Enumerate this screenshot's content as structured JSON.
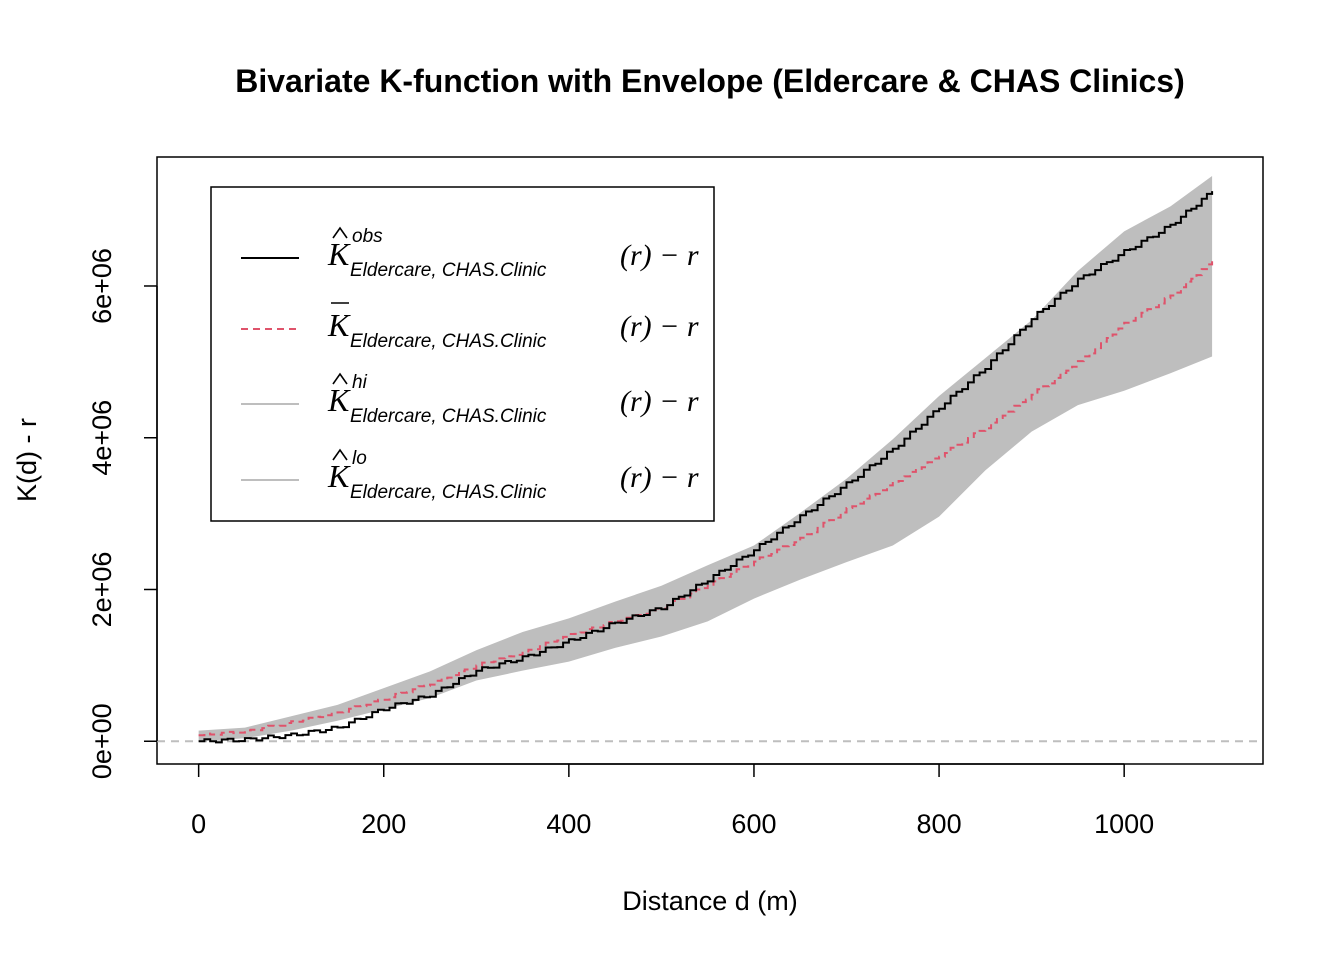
{
  "chart_data": {
    "type": "line",
    "title": "Bivariate K-function with Envelope (Eldercare & CHAS Clinics)",
    "xlabel": "Distance d (m)",
    "ylabel": "K(d) - r",
    "xlim": [
      -45,
      1150
    ],
    "ylim": [
      -300000,
      7700000
    ],
    "x_ticks": [
      0,
      200,
      400,
      600,
      800,
      1000
    ],
    "x_tick_labels": [
      "0",
      "200",
      "400",
      "600",
      "800",
      "1000"
    ],
    "y_ticks": [
      0,
      2000000,
      4000000,
      6000000
    ],
    "y_tick_labels": [
      "0e+00",
      "2e+06",
      "4e+06",
      "6e+06"
    ],
    "reference_line": {
      "y": 0,
      "style": "dashed",
      "color": "#bebebe"
    },
    "legend": {
      "position": "top-left",
      "entries": [
        {
          "symbol": "K",
          "accent": "hat",
          "sup": "obs",
          "sub": "Eldercare, CHAS.Clinic",
          "tail": "(r) − r",
          "color": "#000000",
          "style": "solid"
        },
        {
          "symbol": "K",
          "accent": "bar",
          "sup": "",
          "sub": "Eldercare, CHAS.Clinic",
          "tail": "(r) − r",
          "color": "#df536b",
          "style": "dashed"
        },
        {
          "symbol": "K",
          "accent": "hat",
          "sup": "hi",
          "sub": "Eldercare, CHAS.Clinic",
          "tail": "(r) − r",
          "color": "#bebebe",
          "style": "solid"
        },
        {
          "symbol": "K",
          "accent": "hat",
          "sup": "lo",
          "sub": "Eldercare, CHAS.Clinic",
          "tail": "(r) − r",
          "color": "#bebebe",
          "style": "solid"
        }
      ]
    },
    "x": [
      0,
      50,
      100,
      150,
      200,
      250,
      300,
      350,
      400,
      450,
      500,
      550,
      600,
      650,
      700,
      750,
      800,
      850,
      900,
      950,
      1000,
      1050,
      1095
    ],
    "series": [
      {
        "name": "obs",
        "color": "#000000",
        "values": [
          0,
          20000,
          80000,
          180000,
          430000,
          610000,
          930000,
          1100000,
          1320000,
          1560000,
          1760000,
          2130000,
          2520000,
          2960000,
          3390000,
          3850000,
          4400000,
          4930000,
          5570000,
          6080000,
          6450000,
          6800000,
          7250000
        ]
      },
      {
        "name": "theo",
        "color": "#df536b",
        "values": [
          80000,
          130000,
          250000,
          380000,
          560000,
          760000,
          1000000,
          1170000,
          1400000,
          1580000,
          1760000,
          2060000,
          2370000,
          2670000,
          3060000,
          3400000,
          3760000,
          4140000,
          4570000,
          5000000,
          5500000,
          5870000,
          6330000
        ]
      },
      {
        "name": "hi",
        "color": "#bebebe",
        "values": [
          140000,
          180000,
          330000,
          480000,
          700000,
          920000,
          1200000,
          1440000,
          1620000,
          1840000,
          2050000,
          2320000,
          2580000,
          3010000,
          3460000,
          3980000,
          4550000,
          5050000,
          5550000,
          6200000,
          6720000,
          7050000,
          7450000
        ]
      },
      {
        "name": "lo",
        "color": "#bebebe",
        "values": [
          0,
          40000,
          140000,
          270000,
          420000,
          570000,
          800000,
          930000,
          1050000,
          1230000,
          1380000,
          1580000,
          1880000,
          2130000,
          2360000,
          2580000,
          2960000,
          3570000,
          4080000,
          4430000,
          4620000,
          4850000,
          5070000
        ]
      }
    ]
  }
}
